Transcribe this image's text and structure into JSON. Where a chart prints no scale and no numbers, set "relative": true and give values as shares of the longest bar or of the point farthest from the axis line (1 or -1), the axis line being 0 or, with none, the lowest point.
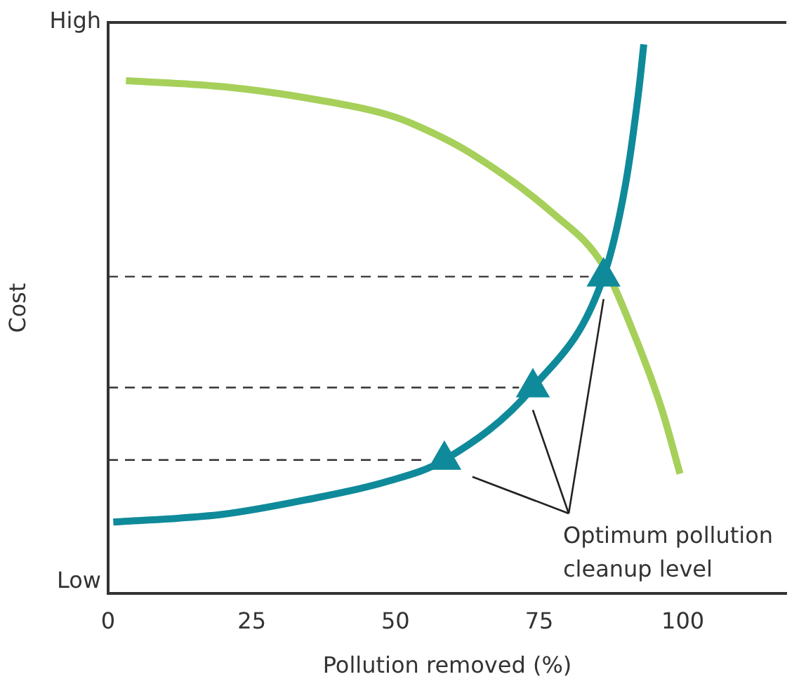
{
  "chart_data": {
    "type": "line",
    "xlabel": "Pollution removed (%)",
    "ylabel": "Cost",
    "xlim": [
      0,
      118
    ],
    "xticks": [
      0,
      25,
      50,
      75,
      100
    ],
    "relative": true,
    "grid": false,
    "legend": false,
    "marker": "none",
    "series": [
      {
        "color": "#a6d05a",
        "x": [
          3.1,
          19.9,
          34.2,
          48.6,
          53.3,
          62.9,
          77.3,
          86.1,
          91.6,
          96.4,
          99.5
        ],
        "values": [
          0.934,
          0.923,
          0.903,
          0.872,
          0.854,
          0.803,
          0.693,
          0.598,
          0.47,
          0.333,
          0.218
        ]
      },
      {
        "color": "#0f8a9a",
        "x": [
          0.9,
          19.9,
          34.2,
          48.6,
          58.5,
          73.9,
          86.2,
          90,
          92.3,
          93.2
        ],
        "values": [
          0.13,
          0.144,
          0.17,
          0.204,
          0.243,
          0.375,
          0.577,
          0.744,
          0.914,
          1
        ]
      },
      {
        "type": "line",
        "color": "#333333",
        "line_style": "dashed",
        "x": [
          0,
          55.7
        ],
        "values": [
          0.243,
          0.243
        ]
      },
      {
        "type": "line",
        "color": "#333333",
        "line_style": "dashed",
        "x": [
          0,
          71.5
        ],
        "values": [
          0.375,
          0.375
        ]
      },
      {
        "type": "line",
        "color": "#333333",
        "line_style": "dashed",
        "x": [
          0,
          83.6
        ],
        "values": [
          0.577,
          0.577
        ]
      },
      {
        "type": "scatter",
        "color": "#0f8a9a",
        "marker": "triangle",
        "x": [
          58.5,
          73.9,
          86.2
        ],
        "values": [
          0.243,
          0.375,
          0.577
        ]
      }
    ],
    "annotations": [
      "Optimum pollution cleanup level",
      "Low",
      "High"
    ]
  }
}
